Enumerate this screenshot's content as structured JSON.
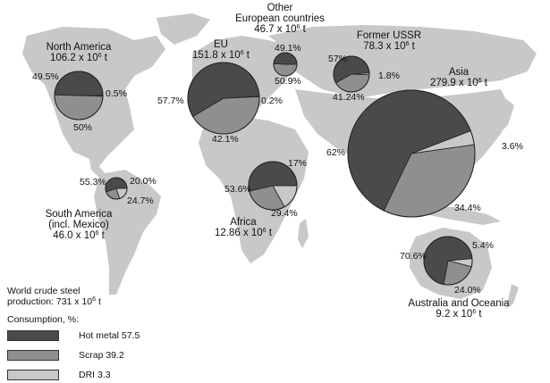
{
  "colors": {
    "hot_metal": "#4a4a4a",
    "scrap": "#8f8f8f",
    "dri": "#c8c8c8",
    "land": "#c8c8c8",
    "pie_edge": "#222222"
  },
  "regions": [
    {
      "id": "north-america",
      "name_lines": [
        "North America"
      ],
      "production": "106.2 x 10",
      "exp": "6",
      "unit": " t",
      "shares": {
        "hot_metal": "49.5%",
        "scrap": "50%",
        "dri": "0.5%"
      }
    },
    {
      "id": "eu",
      "name_lines": [
        "EU"
      ],
      "production": "151.8 x 10",
      "exp": "6",
      "unit": " t",
      "shares": {
        "hot_metal": "57.7%",
        "scrap": "42.1%",
        "dri": "0.2%"
      }
    },
    {
      "id": "other-european",
      "name_lines": [
        "Other",
        "European countries"
      ],
      "production": "46.7 x 10",
      "exp": "6",
      "unit": " t",
      "shares": {
        "hot_metal": "49.1%",
        "scrap": "50.9%",
        "dri": ""
      }
    },
    {
      "id": "former-ussr",
      "name_lines": [
        "Former USSR"
      ],
      "production": "78.3 x 10",
      "exp": "6",
      "unit": " t",
      "shares": {
        "hot_metal": "57%",
        "scrap": "41.24%",
        "dri": "1.8%"
      }
    },
    {
      "id": "asia",
      "name_lines": [
        "Asia"
      ],
      "production": "279.9 x 10",
      "exp": "6",
      "unit": " t",
      "shares": {
        "hot_metal": "62%",
        "scrap": "34.4%",
        "dri": "3.6%"
      }
    },
    {
      "id": "south-america",
      "name_lines": [
        "South America",
        "(incl. Mexico)"
      ],
      "production": "46.0 x 10",
      "exp": "6",
      "unit": " t",
      "shares": {
        "hot_metal": "55.3%",
        "scrap": "24.7%",
        "dri": "20.0%"
      }
    },
    {
      "id": "africa",
      "name_lines": [
        "Africa"
      ],
      "production": "12.86 x 10",
      "exp": "6",
      "unit": " t",
      "shares": {
        "hot_metal": "53.6%",
        "scrap": "29.4%",
        "dri": "17%"
      }
    },
    {
      "id": "australia-oceania",
      "name_lines": [
        "Australia and Oceania"
      ],
      "production": "9.2 x 10",
      "exp": "6",
      "unit": " t",
      "shares": {
        "hot_metal": "70.6%",
        "scrap": "24.0%",
        "dri": "5.4%"
      }
    }
  ],
  "summary": {
    "line1": "World crude steel",
    "line2": "production: 731 x 10",
    "exp": "6",
    "unit": " t"
  },
  "legend": {
    "title": "Consumption, %:",
    "items": [
      {
        "key": "hot_metal",
        "label": "Hot metal 57.5"
      },
      {
        "key": "scrap",
        "label": "Scrap 39.2"
      },
      {
        "key": "dri",
        "label": "DRI 3.3"
      }
    ]
  }
}
